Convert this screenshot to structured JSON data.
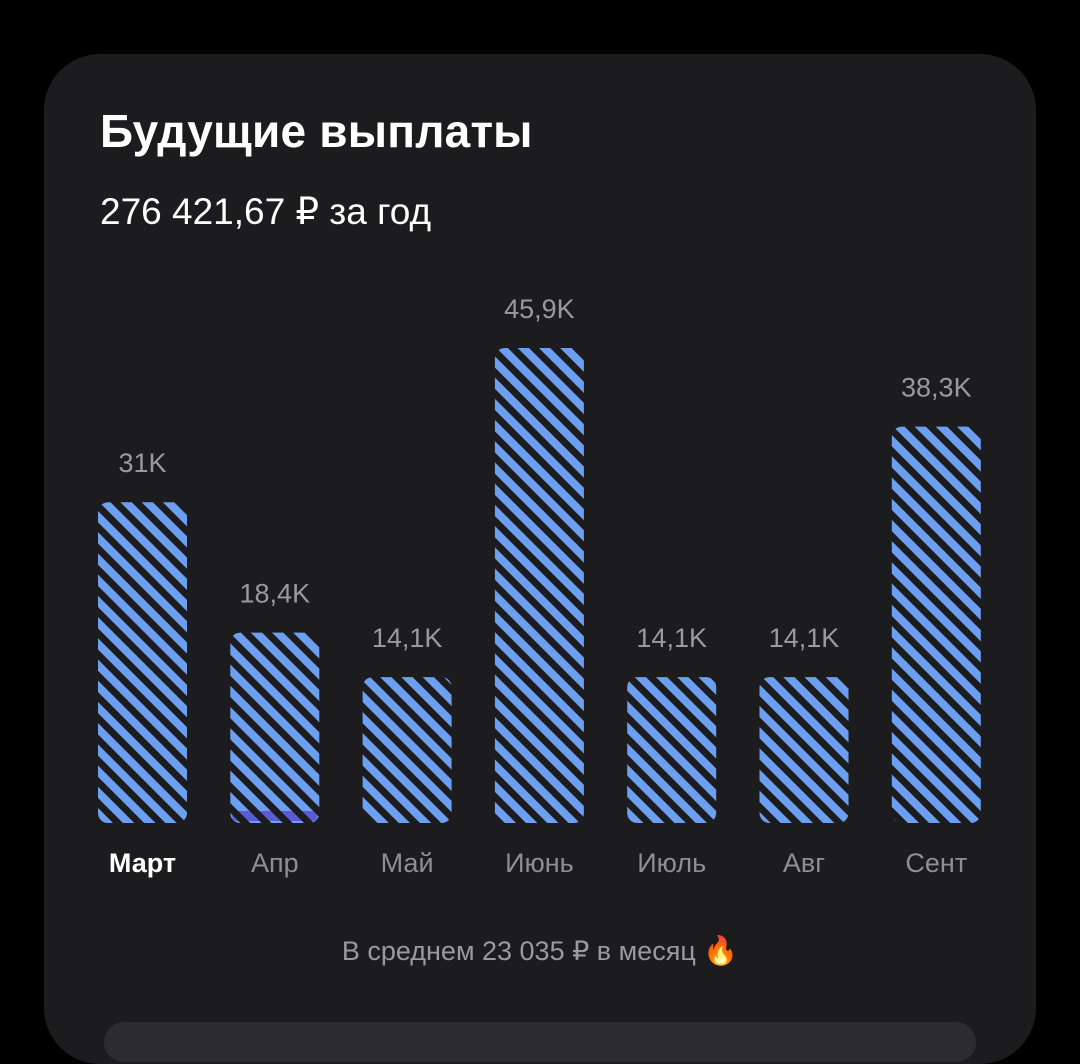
{
  "card": {
    "title": "Будущие выплаты",
    "subtitle": "276 421,67 ₽ за год",
    "footer_text": "В среднем 23 035 ₽ в месяц",
    "footer_icon": "fire-icon",
    "footer_emoji": "🔥"
  },
  "colors": {
    "background": "#000000",
    "card": "#1c1c1e",
    "bar_stripe": "#6d9ff0",
    "bar_gap": "#1c1c1e",
    "april_accent": "#5b5bd6"
  },
  "chart_data": {
    "type": "bar",
    "categories": [
      "Март",
      "Апр",
      "Май",
      "Июнь",
      "Июль",
      "Авг",
      "Сент"
    ],
    "values": [
      31000,
      18400,
      14100,
      45900,
      14100,
      14100,
      38300
    ],
    "value_labels": [
      "31K",
      "18,4K",
      "14,1K",
      "45,9K",
      "14,1K",
      "14,1K",
      "38,3K"
    ],
    "selected_category": "Март",
    "title": "Будущие выплаты",
    "xlabel": "",
    "ylabel": "",
    "ylim": [
      0,
      45900
    ],
    "grid": false
  }
}
